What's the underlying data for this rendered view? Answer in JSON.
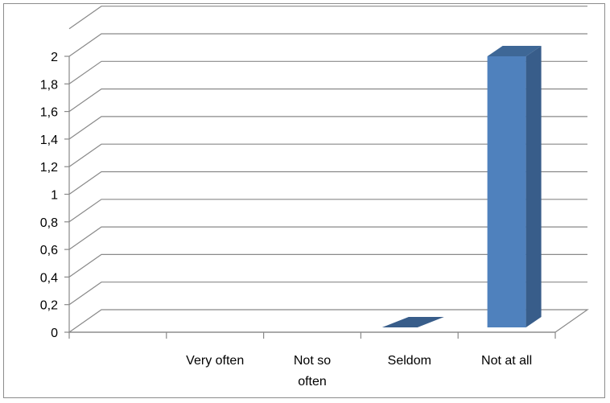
{
  "chart_data": {
    "type": "bar",
    "style": "3d-column",
    "categories": [
      "",
      "Very often",
      "Not so often",
      "Seldom",
      "Not at all"
    ],
    "category_label_lines": [
      [
        ""
      ],
      [
        "Very often"
      ],
      [
        "Not so",
        "often"
      ],
      [
        "Seldom"
      ],
      [
        "Not at all"
      ]
    ],
    "values": [
      0,
      0,
      0,
      0,
      2
    ],
    "ylim": [
      0,
      2
    ],
    "yticks": [
      0,
      0.2,
      0.4,
      0.6,
      0.8,
      1,
      1.2,
      1.4,
      1.6,
      1.8,
      2
    ],
    "ytick_labels": [
      "0",
      "0,2",
      "0,4",
      "0,6",
      "0,8",
      "1",
      "1,2",
      "1,4",
      "1,6",
      "1,8",
      "2"
    ],
    "grid": true,
    "legend": "none",
    "colors": {
      "bar_front": "#4f81bd",
      "bar_side": "#385d8a",
      "bar_top": "#3e6796",
      "gridline": "#898989",
      "floor": "#898989",
      "axis": "#898989"
    }
  }
}
